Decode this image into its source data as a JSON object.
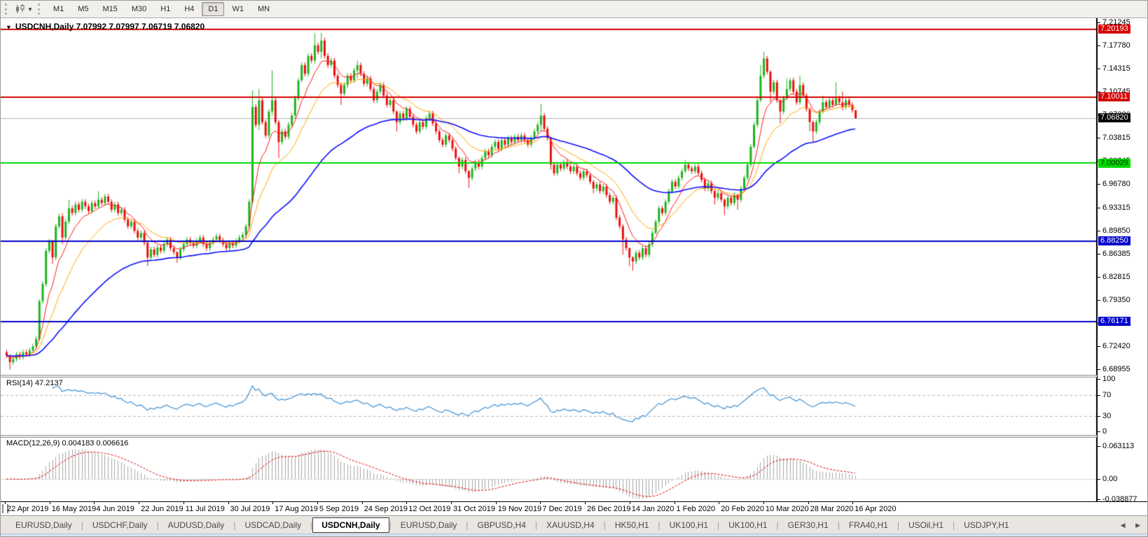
{
  "toolbar": {
    "chart_type_icon": "candlestick-chart-icon",
    "dropdown_icon": "chevron-down-icon",
    "timeframes": [
      "M1",
      "M5",
      "M15",
      "M30",
      "H1",
      "H4",
      "D1",
      "W1",
      "MN"
    ],
    "selected_timeframe": "D1"
  },
  "chart": {
    "menu_icon": "▼",
    "symbol_label": "USDCNH,Daily",
    "ohlc_values": "7.07992 7.07997 7.06719 7.06820"
  },
  "price_axis": {
    "ticks": [
      "7.21245",
      "7.17780",
      "7.14315",
      "7.10745",
      "7.07280",
      "7.03815",
      "7.00245",
      "6.96780",
      "6.93315",
      "6.89850",
      "6.86385",
      "6.82815",
      "6.79350",
      "6.75885",
      "6.72420",
      "6.68955"
    ],
    "badges": [
      {
        "text": "7.20193",
        "price": 7.20193,
        "bg": "#d40000",
        "fg": "#ffffff"
      },
      {
        "text": "7.10011",
        "price": 7.10011,
        "bg": "#d40000",
        "fg": "#ffffff"
      },
      {
        "text": "7.06820",
        "price": 7.0682,
        "bg": "#000000",
        "fg": "#ffffff"
      },
      {
        "text": "7.00029",
        "price": 7.00029,
        "bg": "#00d900",
        "fg": "#003300"
      },
      {
        "text": "6.88250",
        "price": 6.8825,
        "bg": "#0000cc",
        "fg": "#ffffff"
      },
      {
        "text": "6.76171",
        "price": 6.76171,
        "bg": "#0000cc",
        "fg": "#ffffff"
      }
    ]
  },
  "rsi": {
    "label": "RSI(14)",
    "value": "47.2137",
    "axis": [
      100,
      70,
      30,
      0
    ],
    "levels": [
      70,
      30
    ]
  },
  "macd": {
    "label": "MACD(12,26,9)",
    "values": "0.004183 0.006616",
    "axis": [
      0.063113,
      0.0,
      -0.038877
    ]
  },
  "dates": [
    "22 Apr 2019",
    "16 May 2019",
    "4 Jun 2019",
    "22 Jun 2019",
    "11 Jul 2019",
    "30 Jul 2019",
    "17 Aug 2019",
    "5 Sep 2019",
    "24 Sep 2019",
    "12 Oct 2019",
    "31 Oct 2019",
    "19 Nov 2019",
    "7 Dec 2019",
    "26 Dec 2019",
    "14 Jan 2020",
    "1 Feb 2020",
    "20 Feb 2020",
    "10 Mar 2020",
    "28 Mar 2020",
    "16 Apr 2020"
  ],
  "tabs": {
    "items": [
      "EURUSD,Daily",
      "USDCHF,Daily",
      "AUDUSD,Daily",
      "USDCAD,Daily",
      "USDCNH,Daily",
      "EURUSD,Daily",
      "GBPUSD,H4",
      "XAUUSD,H4",
      "HK50,H1",
      "UK100,H1",
      "UK100,H1",
      "GER30,H1",
      "FRA40,H1",
      "USOil,H1",
      "USDJPY,H1"
    ],
    "active_index": 4,
    "scroll_left_icon": "◀",
    "scroll_right_icon": "▶"
  },
  "chart_data": {
    "type": "candlestick",
    "symbol": "USDCNH",
    "timeframe": "Daily",
    "current_ohlc": {
      "open": 7.07992,
      "high": 7.07997,
      "low": 7.06719,
      "close": 7.0682
    },
    "price_axis_top": 7.21245,
    "price_axis_bottom": 6.68955,
    "first_open": 6.715,
    "default_wick": 0.004,
    "closes": [
      6.71,
      6.7,
      6.705,
      6.712,
      6.708,
      6.715,
      6.712,
      6.718,
      6.724,
      6.735,
      6.792,
      6.818,
      6.868,
      6.882,
      6.858,
      6.905,
      6.92,
      6.888,
      6.912,
      6.932,
      6.925,
      6.938,
      6.93,
      6.942,
      6.935,
      6.928,
      6.94,
      6.935,
      6.945,
      6.94,
      6.95,
      6.942,
      6.93,
      6.938,
      6.925,
      6.93,
      6.915,
      6.905,
      6.912,
      6.898,
      6.888,
      6.895,
      6.88,
      6.858,
      6.87,
      6.862,
      6.873,
      6.868,
      6.878,
      6.885,
      6.872,
      6.866,
      6.858,
      6.87,
      6.878,
      6.885,
      6.88,
      6.876,
      6.883,
      6.888,
      6.878,
      6.872,
      6.88,
      6.885,
      6.89,
      6.884,
      6.878,
      6.872,
      6.88,
      6.876,
      6.883,
      6.888,
      6.892,
      6.905,
      6.942,
      7.085,
      7.058,
      7.095,
      7.062,
      7.042,
      7.078,
      7.095,
      7.062,
      7.032,
      7.048,
      7.04,
      7.058,
      7.072,
      7.098,
      7.125,
      7.148,
      7.135,
      7.162,
      7.155,
      7.178,
      7.168,
      7.185,
      7.162,
      7.148,
      7.155,
      7.132,
      7.118,
      7.105,
      7.118,
      7.132,
      7.125,
      7.14,
      7.148,
      7.135,
      7.12,
      7.128,
      7.112,
      7.095,
      7.108,
      7.118,
      7.102,
      7.088,
      7.095,
      7.078,
      7.062,
      7.075,
      7.068,
      7.082,
      7.07,
      7.058,
      7.048,
      7.062,
      7.055,
      7.068,
      7.075,
      7.06,
      7.048,
      7.035,
      7.028,
      7.042,
      7.035,
      7.022,
      7.008,
      6.995,
      7.005,
      6.988,
      6.978,
      6.992,
      7.002,
      6.995,
      7.008,
      7.018,
      7.012,
      7.025,
      7.032,
      7.022,
      7.035,
      7.028,
      7.038,
      7.032,
      7.04,
      7.035,
      7.042,
      7.035,
      7.028,
      7.038,
      7.048,
      7.058,
      7.072,
      7.052,
      7.038,
      6.998,
      6.985,
      6.998,
      6.992,
      7.002,
      6.995,
      6.988,
      6.995,
      6.985,
      6.978,
      6.988,
      6.982,
      6.972,
      6.962,
      6.968,
      6.958,
      6.965,
      6.952,
      6.942,
      6.948,
      6.918,
      6.905,
      6.885,
      6.872,
      6.858,
      6.852,
      6.865,
      6.858,
      6.872,
      6.862,
      6.878,
      6.895,
      6.912,
      6.932,
      6.925,
      6.942,
      6.958,
      6.972,
      6.965,
      6.978,
      6.988,
      6.998,
      6.992,
      6.988,
      6.995,
      6.985,
      6.975,
      6.962,
      6.97,
      6.958,
      6.948,
      6.955,
      6.945,
      6.935,
      6.948,
      6.94,
      6.952,
      6.945,
      6.962,
      6.978,
      6.998,
      7.025,
      7.058,
      7.095,
      7.132,
      7.158,
      7.138,
      7.108,
      7.122,
      7.095,
      7.078,
      7.098,
      7.112,
      7.125,
      7.108,
      7.092,
      7.118,
      7.102,
      7.082,
      7.062,
      7.048,
      7.062,
      7.078,
      7.092,
      7.085,
      7.095,
      7.088,
      7.098,
      7.092,
      7.085,
      7.095,
      7.088,
      7.08,
      7.068
    ],
    "wick_overrides": [
      [
        1,
        6.712,
        6.689
      ],
      [
        10,
        6.795,
        6.733
      ],
      [
        14,
        6.885,
        6.848
      ],
      [
        17,
        6.925,
        6.878
      ],
      [
        19,
        6.945,
        6.908
      ],
      [
        28,
        6.958,
        6.932
      ],
      [
        43,
        6.884,
        6.845
      ],
      [
        52,
        6.868,
        6.85
      ],
      [
        75,
        7.11,
        6.938
      ],
      [
        77,
        7.112,
        7.05
      ],
      [
        81,
        7.14,
        7.072
      ],
      [
        83,
        7.065,
        7.008
      ],
      [
        90,
        7.152,
        7.122
      ],
      [
        94,
        7.196,
        7.15
      ],
      [
        96,
        7.1965,
        7.158
      ],
      [
        102,
        7.122,
        7.088
      ],
      [
        107,
        7.155,
        7.128
      ],
      [
        119,
        7.08,
        7.048
      ],
      [
        138,
        7.01,
        6.985
      ],
      [
        141,
        6.99,
        6.963
      ],
      [
        163,
        7.09,
        7.048
      ],
      [
        166,
        7.04,
        6.99
      ],
      [
        179,
        6.975,
        6.955
      ],
      [
        188,
        6.908,
        6.862
      ],
      [
        190,
        6.873,
        6.845
      ],
      [
        191,
        6.86,
        6.838
      ],
      [
        198,
        6.915,
        6.893
      ],
      [
        207,
        7.005,
        6.985
      ],
      [
        216,
        6.96,
        6.938
      ],
      [
        219,
        6.947,
        6.922
      ],
      [
        223,
        6.954,
        6.93
      ],
      [
        228,
        7.062,
        7.022
      ],
      [
        230,
        7.148,
        7.092
      ],
      [
        231,
        7.168,
        7.128
      ],
      [
        233,
        7.14,
        7.092
      ],
      [
        236,
        7.097,
        7.06
      ],
      [
        238,
        7.128,
        7.095
      ],
      [
        242,
        7.132,
        7.088
      ],
      [
        245,
        7.084,
        7.048
      ],
      [
        246,
        7.064,
        7.032
      ],
      [
        249,
        7.102,
        7.075
      ],
      [
        253,
        7.122,
        7.086
      ],
      [
        255,
        7.108,
        7.08
      ],
      [
        259,
        7.08,
        7.067
      ]
    ],
    "horizontal_levels": [
      {
        "price": 7.20193,
        "color": "#d40000",
        "width": 2
      },
      {
        "price": 7.10011,
        "color": "#d40000",
        "width": 2
      },
      {
        "price": 7.0682,
        "color": "#b2b2b2",
        "width": 1,
        "current_price": true
      },
      {
        "price": 7.00029,
        "color": "#00d900",
        "width": 2
      },
      {
        "price": 6.8825,
        "color": "#0000cc",
        "width": 2
      },
      {
        "price": 6.76171,
        "color": "#0000cc",
        "width": 2
      }
    ],
    "moving_averages": [
      {
        "name": "fast",
        "period": 8,
        "color": "#ff1a1a",
        "width": 1
      },
      {
        "name": "medium",
        "period": 18,
        "color": "#ffa500",
        "width": 1
      },
      {
        "name": "slow",
        "period": 55,
        "color": "#0d0dff",
        "width": 1.6
      }
    ],
    "indicators": {
      "rsi": {
        "period": 14,
        "current": 47.2137,
        "levels": [
          70,
          30
        ],
        "range": [
          0,
          100
        ],
        "color": "#3c8ed2"
      },
      "macd": {
        "fast": 12,
        "slow": 26,
        "signal_period": 9,
        "current_main": 0.004183,
        "current_signal": 0.006616,
        "axis_max": 0.063113,
        "axis_min": -0.038877,
        "histogram_color": "#a6a6a6",
        "signal_color": "#e00000"
      }
    },
    "colors": {
      "up": "#1db31d",
      "down": "#ea0e0e",
      "background": "#ffffff"
    }
  }
}
